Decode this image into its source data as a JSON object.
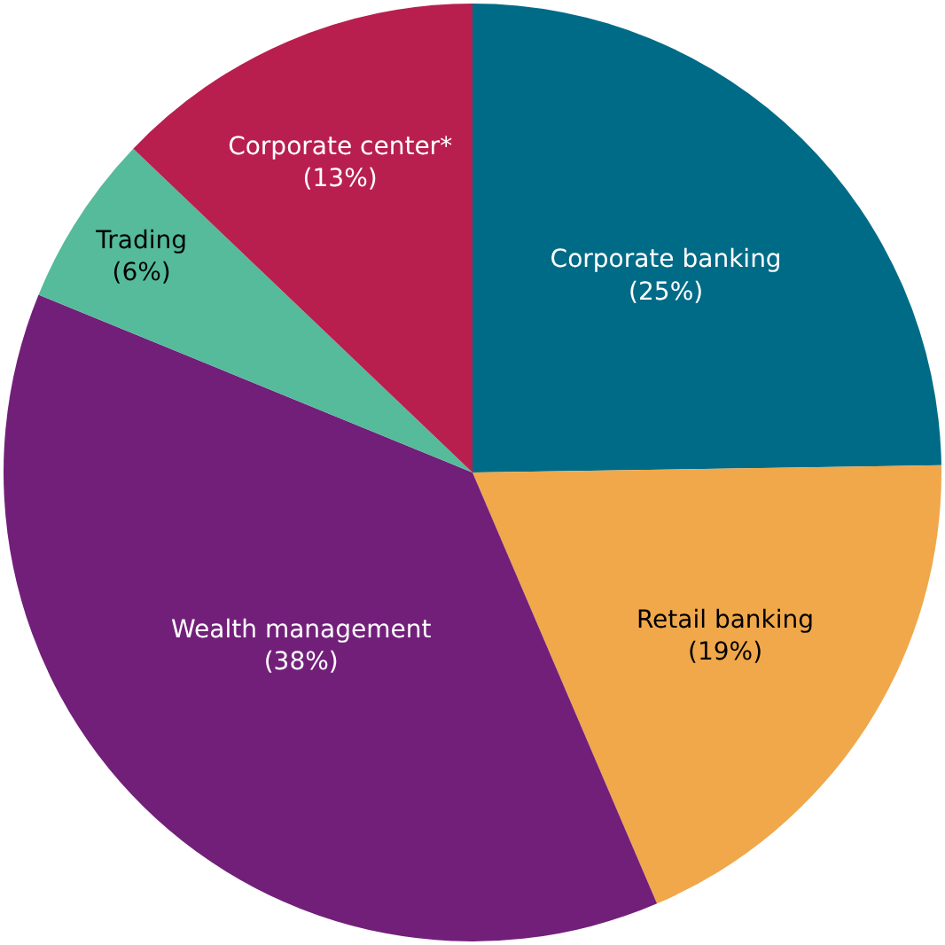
{
  "chart_data": {
    "type": "pie",
    "categories": [
      "Corporate banking",
      "Retail banking",
      "Wealth management",
      "Trading",
      "Corporate center*"
    ],
    "values": [
      25,
      19,
      38,
      6,
      13
    ],
    "value_labels": [
      "(25%)",
      "(19%)",
      "(38%)",
      "(6%)",
      "(13%)"
    ],
    "colors": [
      "#006b87",
      "#f0a84b",
      "#721f7a",
      "#55bb9a",
      "#b81f4e"
    ],
    "legend": false
  }
}
